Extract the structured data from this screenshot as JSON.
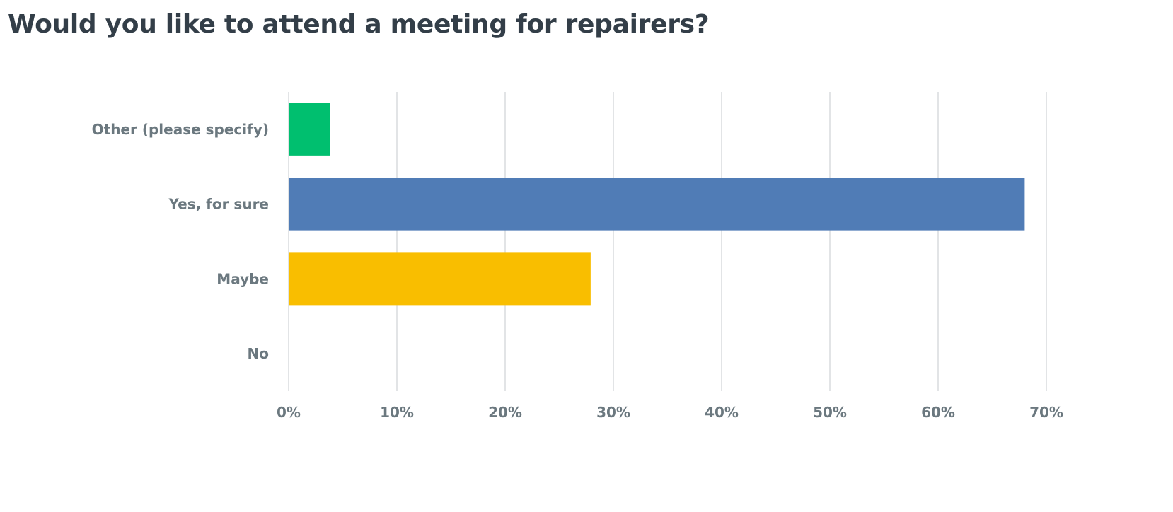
{
  "chart_data": {
    "type": "bar",
    "orientation": "horizontal",
    "title": "Would you like to attend a meeting for repairers?",
    "categories": [
      "Other (please specify)",
      "Yes, for sure",
      "Maybe",
      "No"
    ],
    "values": [
      3.8,
      68.0,
      27.9,
      0.0
    ],
    "colors": [
      "#00bf6f",
      "#507cb6",
      "#f9be00",
      "#6bc8cd"
    ],
    "xlim": [
      0,
      70
    ],
    "xticks": [
      0,
      10,
      20,
      30,
      40,
      50,
      60,
      70
    ],
    "tick_suffix": "%",
    "grid": true,
    "xlabel": "",
    "ylabel": ""
  }
}
